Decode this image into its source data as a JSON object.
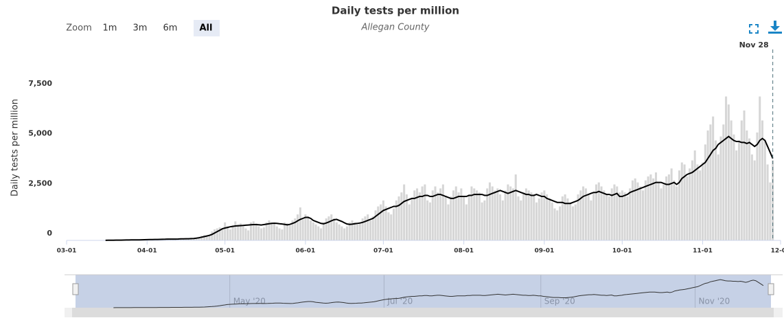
{
  "chart_data": {
    "type": "bar-line",
    "title": "Daily tests per million",
    "subtitle": "Allegan County",
    "y_label": "Daily tests per million",
    "range_selector": {
      "label": "Zoom",
      "buttons": [
        "1m",
        "3m",
        "6m",
        "All"
      ],
      "selected": 3
    },
    "crosshair": {
      "x": "11-28",
      "label": "Nov 28"
    },
    "xlim": [
      "03-01",
      "12-01"
    ],
    "xticks": [
      "03-01",
      "04-01",
      "05-01",
      "06-01",
      "07-01",
      "08-01",
      "09-01",
      "10-01",
      "11-01",
      "12-01"
    ],
    "ylim": [
      0,
      10000
    ],
    "yticks": [
      0,
      {
        "value": 2500,
        "label": "2,500"
      },
      {
        "value": 5000,
        "label": "5,000"
      },
      {
        "value": 7500,
        "label": "7,500"
      }
    ],
    "navigator_xticks": [
      {
        "value": "05-01",
        "label": "May '20"
      },
      {
        "value": "07-01",
        "label": "Jul '20"
      },
      {
        "value": "09-01",
        "label": "Sep '20"
      },
      {
        "value": "11-01",
        "label": "Nov '20"
      }
    ],
    "x": [
      "03-16",
      "03-17",
      "03-18",
      "03-19",
      "03-20",
      "03-21",
      "03-22",
      "03-23",
      "03-24",
      "03-25",
      "03-26",
      "03-27",
      "03-28",
      "03-29",
      "03-30",
      "03-31",
      "04-01",
      "04-02",
      "04-03",
      "04-04",
      "04-05",
      "04-06",
      "04-07",
      "04-08",
      "04-09",
      "04-10",
      "04-11",
      "04-12",
      "04-13",
      "04-14",
      "04-15",
      "04-16",
      "04-17",
      "04-18",
      "04-19",
      "04-20",
      "04-21",
      "04-22",
      "04-23",
      "04-24",
      "04-25",
      "04-26",
      "04-27",
      "04-28",
      "04-29",
      "04-30",
      "05-01",
      "05-02",
      "05-03",
      "05-04",
      "05-05",
      "05-06",
      "05-07",
      "05-08",
      "05-09",
      "05-10",
      "05-11",
      "05-12",
      "05-13",
      "05-14",
      "05-15",
      "05-16",
      "05-17",
      "05-18",
      "05-19",
      "05-20",
      "05-21",
      "05-22",
      "05-23",
      "05-24",
      "05-25",
      "05-26",
      "05-27",
      "05-28",
      "05-29",
      "05-30",
      "05-31",
      "06-01",
      "06-02",
      "06-03",
      "06-04",
      "06-05",
      "06-06",
      "06-07",
      "06-08",
      "06-09",
      "06-10",
      "06-11",
      "06-12",
      "06-13",
      "06-14",
      "06-15",
      "06-16",
      "06-17",
      "06-18",
      "06-19",
      "06-20",
      "06-21",
      "06-22",
      "06-23",
      "06-24",
      "06-25",
      "06-26",
      "06-27",
      "06-28",
      "06-29",
      "06-30",
      "07-01",
      "07-02",
      "07-03",
      "07-04",
      "07-05",
      "07-06",
      "07-07",
      "07-08",
      "07-09",
      "07-10",
      "07-11",
      "07-12",
      "07-13",
      "07-14",
      "07-15",
      "07-16",
      "07-17",
      "07-18",
      "07-19",
      "07-20",
      "07-21",
      "07-22",
      "07-23",
      "07-24",
      "07-25",
      "07-26",
      "07-27",
      "07-28",
      "07-29",
      "07-30",
      "07-31",
      "08-01",
      "08-02",
      "08-03",
      "08-04",
      "08-05",
      "08-06",
      "08-07",
      "08-08",
      "08-09",
      "08-10",
      "08-11",
      "08-12",
      "08-13",
      "08-14",
      "08-15",
      "08-16",
      "08-17",
      "08-18",
      "08-19",
      "08-20",
      "08-21",
      "08-22",
      "08-23",
      "08-24",
      "08-25",
      "08-26",
      "08-27",
      "08-28",
      "08-29",
      "08-30",
      "08-31",
      "09-01",
      "09-02",
      "09-03",
      "09-04",
      "09-05",
      "09-06",
      "09-07",
      "09-08",
      "09-09",
      "09-10",
      "09-11",
      "09-12",
      "09-13",
      "09-14",
      "09-15",
      "09-16",
      "09-17",
      "09-18",
      "09-19",
      "09-20",
      "09-21",
      "09-22",
      "09-23",
      "09-24",
      "09-25",
      "09-26",
      "09-27",
      "09-28",
      "09-29",
      "09-30",
      "10-01",
      "10-02",
      "10-03",
      "10-04",
      "10-05",
      "10-06",
      "10-07",
      "10-08",
      "10-09",
      "10-10",
      "10-11",
      "10-12",
      "10-13",
      "10-14",
      "10-15",
      "10-16",
      "10-17",
      "10-18",
      "10-19",
      "10-20",
      "10-21",
      "10-22",
      "10-23",
      "10-24",
      "10-25",
      "10-26",
      "10-27",
      "10-28",
      "10-29",
      "10-30",
      "10-31",
      "11-01",
      "11-02",
      "11-03",
      "11-04",
      "11-05",
      "11-06",
      "11-07",
      "11-08",
      "11-09",
      "11-10",
      "11-11",
      "11-12",
      "11-13",
      "11-14",
      "11-15",
      "11-16",
      "11-17",
      "11-18",
      "11-19",
      "11-20",
      "11-21",
      "11-22",
      "11-23",
      "11-24",
      "11-25",
      "11-26",
      "11-27",
      "11-28"
    ],
    "series": [
      {
        "kind": "bar",
        "color": "#d6d6d6",
        "values": [
          10,
          15,
          12,
          20,
          18,
          10,
          12,
          25,
          30,
          28,
          35,
          30,
          20,
          25,
          40,
          45,
          50,
          55,
          60,
          48,
          40,
          65,
          70,
          75,
          80,
          70,
          50,
          55,
          85,
          90,
          95,
          100,
          90,
          70,
          110,
          140,
          180,
          230,
          260,
          200,
          250,
          450,
          550,
          600,
          650,
          600,
          900,
          700,
          550,
          750,
          950,
          800,
          850,
          700,
          600,
          500,
          900,
          950,
          850,
          700,
          600,
          650,
          900,
          1000,
          900,
          850,
          700,
          600,
          550,
          900,
          850,
          750,
          1000,
          1100,
          1300,
          1650,
          1050,
          1300,
          1200,
          1000,
          900,
          800,
          700,
          600,
          900,
          1100,
          1200,
          1300,
          1100,
          900,
          800,
          700,
          600,
          700,
          900,
          1000,
          900,
          800,
          900,
          1100,
          1200,
          1300,
          1000,
          1200,
          1500,
          1700,
          1800,
          2000,
          1700,
          1400,
          1300,
          1600,
          2000,
          2200,
          2400,
          2800,
          2300,
          1800,
          2100,
          2500,
          2600,
          2400,
          2700,
          2800,
          2000,
          1900,
          2500,
          2700,
          2400,
          2600,
          2800,
          2200,
          1800,
          2200,
          2500,
          2700,
          2400,
          2600,
          2200,
          1800,
          2300,
          2700,
          2600,
          2500,
          2400,
          1900,
          2000,
          2600,
          2900,
          2700,
          2500,
          2600,
          2300,
          2000,
          2500,
          2800,
          2700,
          2600,
          3300,
          2200,
          2000,
          2400,
          2600,
          2500,
          2400,
          2300,
          1900,
          2100,
          2400,
          2500,
          2300,
          2100,
          1900,
          1600,
          1500,
          1700,
          2200,
          2300,
          2100,
          1900,
          1700,
          1800,
          2300,
          2500,
          2700,
          2600,
          2300,
          2000,
          2400,
          2800,
          2900,
          2700,
          2500,
          2300,
          2200,
          2600,
          2800,
          2700,
          2400,
          2500,
          2400,
          2200,
          2600,
          3000,
          3100,
          2900,
          2700,
          2500,
          3000,
          3200,
          3300,
          3100,
          3400,
          2900,
          2600,
          2800,
          3200,
          3300,
          3600,
          3000,
          2700,
          3500,
          3900,
          3800,
          3200,
          3600,
          4000,
          4500,
          3800,
          3500,
          3900,
          4800,
          5500,
          5800,
          6200,
          5000,
          4300,
          5200,
          5800,
          7200,
          6800,
          6000,
          5300,
          4500,
          5000,
          6000,
          6500,
          5500,
          5100,
          4300,
          4000,
          5400,
          7200,
          6000,
          5000,
          3800,
          2900,
          4000
        ]
      },
      {
        "kind": "line",
        "color": "#000000",
        "values": [
          5,
          8,
          10,
          12,
          14,
          15,
          15,
          18,
          20,
          22,
          25,
          26,
          27,
          29,
          32,
          35,
          38,
          42,
          45,
          47,
          48,
          52,
          56,
          60,
          64,
          66,
          66,
          67,
          70,
          74,
          78,
          82,
          84,
          88,
          95,
          110,
          130,
          160,
          190,
          220,
          250,
          300,
          370,
          440,
          510,
          580,
          620,
          650,
          680,
          700,
          720,
          730,
          740,
          750,
          760,
          770,
          780,
          790,
          790,
          780,
          770,
          790,
          810,
          830,
          850,
          860,
          850,
          830,
          820,
          800,
          780,
          800,
          850,
          900,
          980,
          1050,
          1100,
          1150,
          1150,
          1100,
          1000,
          950,
          900,
          850,
          830,
          870,
          920,
          980,
          1030,
          1050,
          1000,
          950,
          880,
          820,
          800,
          810,
          830,
          850,
          870,
          900,
          950,
          1000,
          1050,
          1100,
          1200,
          1300,
          1400,
          1500,
          1550,
          1600,
          1650,
          1700,
          1700,
          1750,
          1850,
          1950,
          2000,
          2050,
          2100,
          2100,
          2150,
          2200,
          2200,
          2250,
          2250,
          2200,
          2200,
          2250,
          2300,
          2300,
          2250,
          2200,
          2150,
          2100,
          2100,
          2150,
          2200,
          2200,
          2200,
          2200,
          2250,
          2250,
          2300,
          2300,
          2300,
          2300,
          2250,
          2250,
          2300,
          2350,
          2400,
          2450,
          2500,
          2450,
          2400,
          2350,
          2400,
          2450,
          2500,
          2450,
          2400,
          2350,
          2300,
          2300,
          2250,
          2250,
          2300,
          2250,
          2200,
          2200,
          2100,
          2050,
          2000,
          1950,
          1900,
          1900,
          1900,
          1850,
          1850,
          1850,
          1900,
          1950,
          2000,
          2100,
          2200,
          2250,
          2300,
          2350,
          2400,
          2400,
          2450,
          2400,
          2350,
          2300,
          2300,
          2250,
          2300,
          2350,
          2200,
          2200,
          2250,
          2300,
          2400,
          2450,
          2500,
          2550,
          2600,
          2650,
          2700,
          2750,
          2800,
          2850,
          2900,
          2900,
          2900,
          2850,
          2800,
          2800,
          2850,
          2900,
          2800,
          2900,
          3100,
          3200,
          3300,
          3350,
          3400,
          3500,
          3600,
          3700,
          3800,
          3900,
          4100,
          4300,
          4500,
          4600,
          4800,
          4900,
          5000,
          5100,
          5200,
          5100,
          5000,
          4950,
          4950,
          4900,
          4900,
          4850,
          4900,
          4800,
          4700,
          4800,
          5000,
          5100,
          5000,
          4700,
          4400,
          4100
        ]
      }
    ]
  }
}
